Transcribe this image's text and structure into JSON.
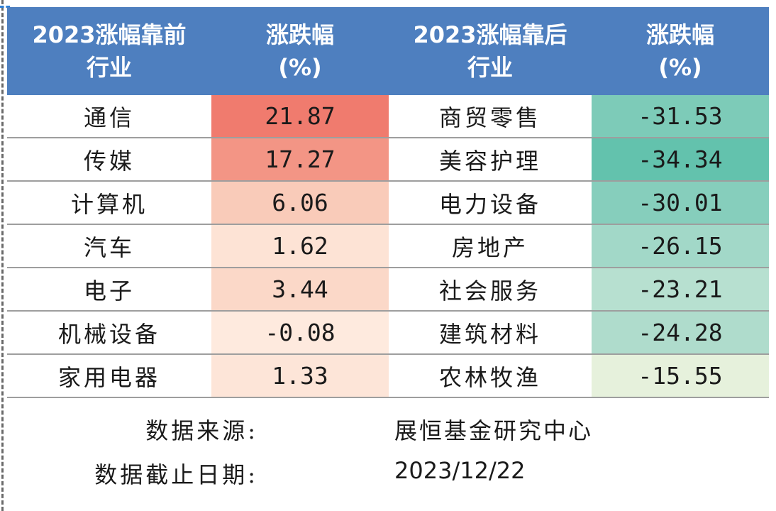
{
  "headers": {
    "top_industry": [
      "2023涨幅靠前",
      "行业"
    ],
    "top_change": [
      "涨跌幅",
      "(%)"
    ],
    "bottom_industry": [
      "2023涨幅靠后",
      "行业"
    ],
    "bottom_change": [
      "涨跌幅",
      "(%)"
    ]
  },
  "rows": [
    {
      "top_name": "通信",
      "top_change": "21.87",
      "top_color": "#f07b6e",
      "bottom_name": "商贸零售",
      "bottom_change": "-31.53",
      "bottom_color": "#7dcbb8"
    },
    {
      "top_name": "传媒",
      "top_change": "17.27",
      "top_color": "#f39585",
      "bottom_name": "美容护理",
      "bottom_change": "-34.34",
      "bottom_color": "#63c2ad"
    },
    {
      "top_name": "计算机",
      "top_change": "6.06",
      "top_color": "#f9cbb9",
      "bottom_name": "电力设备",
      "bottom_change": "-30.01",
      "bottom_color": "#86cebc"
    },
    {
      "top_name": "汽车",
      "top_change": "1.62",
      "top_color": "#fde3d5",
      "bottom_name": "房地产",
      "bottom_change": "-26.15",
      "bottom_color": "#a2d8c8"
    },
    {
      "top_name": "电子",
      "top_change": "3.44",
      "top_color": "#fbd8c8",
      "bottom_name": "社会服务",
      "bottom_change": "-23.21",
      "bottom_color": "#b7e0d0"
    },
    {
      "top_name": "机械设备",
      "top_change": "-0.08",
      "top_color": "#feeade",
      "bottom_name": "建筑材料",
      "bottom_change": "-24.28",
      "bottom_color": "#afdccc"
    },
    {
      "top_name": "家用电器",
      "top_change": "1.33",
      "top_color": "#fde5d8",
      "bottom_name": "农林牧渔",
      "bottom_change": "-15.55",
      "bottom_color": "#e6f1dc"
    }
  ],
  "footer": {
    "source_label": "数据来源:",
    "source_value": "展恒基金研究中心",
    "date_label": "数据截止日期:",
    "date_value": "2023/12/22"
  }
}
